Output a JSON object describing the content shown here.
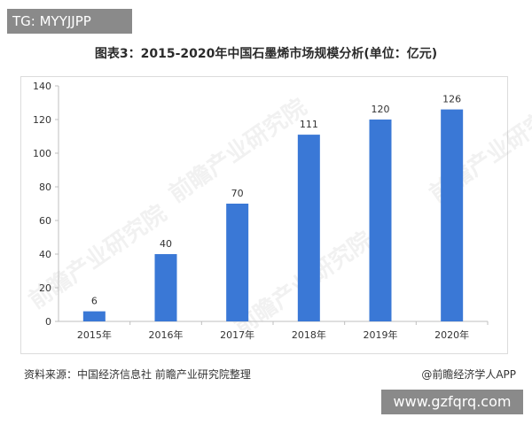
{
  "tag": "TG: MYYJJPP",
  "website": "www.gzfqrq.com",
  "title": "图表3：2015-2020年中国石墨烯市场规模分析(单位：亿元)",
  "source": "资料来源：中国经济信息社 前瞻产业研究院整理",
  "credit": "@前瞻经济学人APP",
  "watermark": "前瞻产业研究院",
  "colors": {
    "bar": "#3a78d6",
    "axis": "#bfbfbf",
    "text": "#333333"
  },
  "chart_data": {
    "type": "bar",
    "title": "图表3：2015-2020年中国石墨烯市场规模分析(单位：亿元)",
    "xlabel": "",
    "ylabel": "",
    "categories": [
      "2015年",
      "2016年",
      "2017年",
      "2018年",
      "2019年",
      "2020年"
    ],
    "values": [
      6,
      40,
      70,
      111,
      120,
      126
    ],
    "ylim": [
      0,
      140
    ],
    "yticks": [
      0,
      20,
      40,
      60,
      80,
      100,
      120,
      140
    ],
    "grid": false
  }
}
